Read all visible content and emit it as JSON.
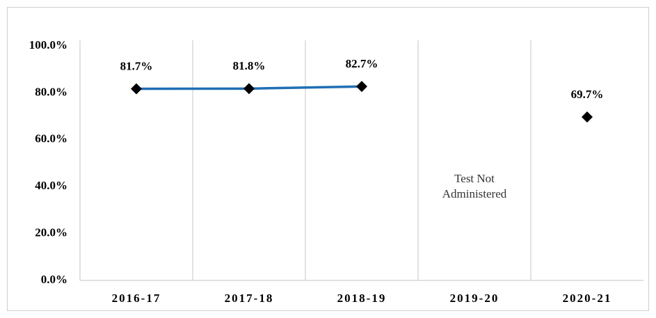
{
  "chart_data": {
    "type": "line",
    "categories": [
      "2016-17",
      "2017-18",
      "2018-19",
      "2019-20",
      "2020-21"
    ],
    "series": [
      {
        "color": "#1f6fb5",
        "values": [
          81.7,
          81.8,
          82.7,
          null,
          69.7
        ],
        "value_labels": [
          "81.7%",
          "81.8%",
          "82.7%",
          null,
          "69.7%"
        ]
      }
    ],
    "ylim": [
      0,
      100
    ],
    "yticks": [
      {
        "value": 0,
        "label": "0.0%"
      },
      {
        "value": 20,
        "label": "20.0%"
      },
      {
        "value": 40,
        "label": "40.0%"
      },
      {
        "value": 60,
        "label": "60.0%"
      },
      {
        "value": 80,
        "label": "80.0%"
      },
      {
        "value": 100,
        "label": "100.0%"
      }
    ],
    "annotation": "Test Not Administered"
  }
}
